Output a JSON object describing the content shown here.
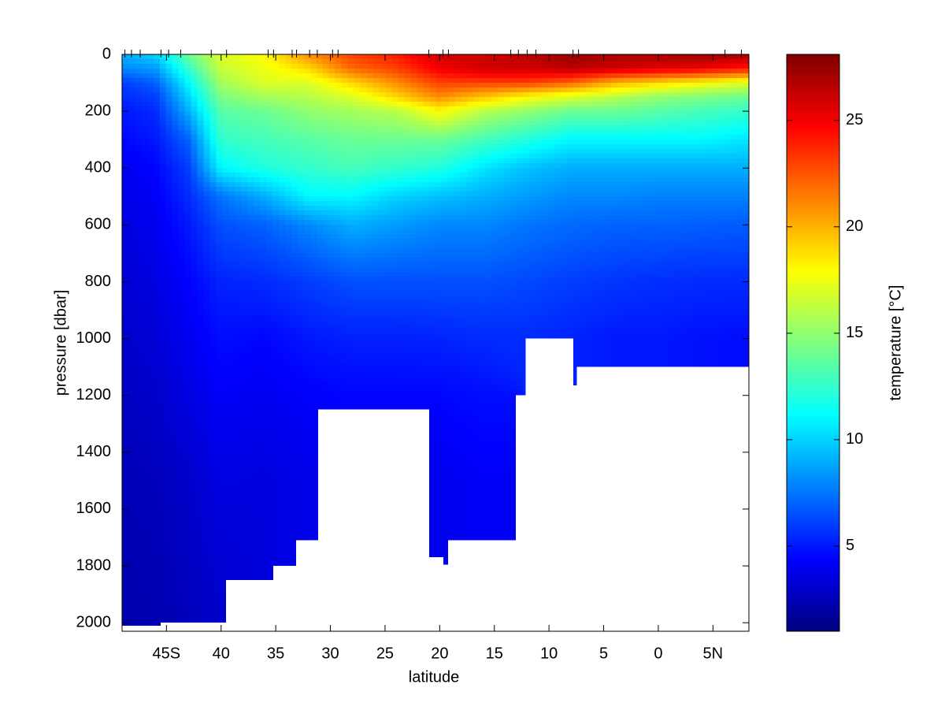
{
  "chart_data": {
    "type": "contour",
    "xlabel": "latitude",
    "ylabel": "pressure [dbar]",
    "colorbar_label": "temperature [°C]",
    "colormap": "jet",
    "clim": [
      1,
      28.1
    ],
    "colorbar_ticks": [
      5,
      10,
      15,
      20,
      25
    ],
    "xlim": [
      -49.06,
      8.29
    ],
    "ylim": [
      0,
      2030
    ],
    "y_reversed": true,
    "xticks": [
      {
        "value": -45,
        "label": "45S"
      },
      {
        "value": -40,
        "label": "40"
      },
      {
        "value": -35,
        "label": "35"
      },
      {
        "value": -30,
        "label": "30"
      },
      {
        "value": -25,
        "label": "25"
      },
      {
        "value": -20,
        "label": "20"
      },
      {
        "value": -15,
        "label": "15"
      },
      {
        "value": -10,
        "label": "10"
      },
      {
        "value": -5,
        "label": "5"
      },
      0,
      {
        "value": 5,
        "label": "5N"
      }
    ],
    "yticks": [
      0,
      200,
      400,
      600,
      800,
      1000,
      1200,
      1400,
      1600,
      1800,
      2000
    ],
    "stations": [
      -48.8,
      -48.2,
      -47.4,
      -45.5,
      -44.8,
      -43.7,
      -40.9,
      -39.5,
      -35.7,
      -35.2,
      -33.5,
      -33.1,
      -31.9,
      -31.2,
      -29.8,
      -29.3,
      -21.0,
      -19.7,
      -19.2,
      -13.5,
      -12.8,
      -12.0,
      -11.2,
      -7.8,
      -7.3,
      6.1,
      7.6
    ],
    "bottom_edges": [
      -49.06,
      -45.5,
      -39.5,
      -35.2,
      -33.1,
      -31.1,
      -21.0,
      -19.7,
      -19.2,
      -13.0,
      -12.1,
      -7.8,
      -7.4,
      8.29
    ],
    "bottom_pressure": [
      2010,
      2000,
      1850,
      1800,
      1710,
      1250,
      1770,
      1795,
      1710,
      1200,
      1000,
      1165,
      1100
    ],
    "field": {
      "x": [
        -49,
        -46,
        -43,
        -40,
        -36,
        -32,
        -28,
        -24,
        -20,
        -16,
        -12,
        -8,
        -4,
        0,
        4,
        8.3
      ],
      "y": [
        0,
        50,
        100,
        150,
        200,
        300,
        400,
        500,
        600,
        800,
        1000,
        1200,
        1500,
        2000
      ],
      "values": [
        [
          9,
          10,
          14,
          17,
          18,
          21,
          23,
          24,
          26,
          26,
          26.5,
          27.5,
          27,
          27,
          27.5,
          27
        ],
        [
          8,
          8.5,
          12.5,
          16.5,
          17.5,
          19,
          22,
          23,
          25,
          26,
          26,
          26.5,
          26,
          25.5,
          25,
          24
        ],
        [
          6,
          7,
          11,
          15.5,
          17,
          17,
          19,
          21,
          23,
          23,
          23,
          22,
          20,
          19,
          18,
          17
        ],
        [
          5.5,
          6,
          10,
          14.5,
          15.5,
          16,
          17,
          19,
          21,
          19.5,
          18,
          17,
          16,
          15,
          14.5,
          14
        ],
        [
          5,
          5.5,
          9,
          13.5,
          14,
          15,
          15.5,
          16,
          18,
          16,
          15,
          14,
          14,
          13.5,
          13,
          12.5
        ],
        [
          4.5,
          5,
          7,
          12.5,
          13,
          13.5,
          14,
          14,
          14,
          13,
          12,
          11,
          11,
          11,
          11,
          10.5
        ],
        [
          4,
          4.5,
          6,
          11,
          12,
          12.5,
          13,
          12.5,
          12,
          10.5,
          9.5,
          9,
          9,
          9,
          9,
          9
        ],
        [
          3.8,
          4.2,
          5.5,
          7.5,
          9,
          11,
          11,
          10,
          9.5,
          9,
          8.5,
          8,
          8,
          7.8,
          7.8,
          7.8
        ],
        [
          3.5,
          4,
          5,
          6.5,
          7,
          8,
          9,
          8.5,
          8,
          8,
          7.5,
          7.2,
          7,
          7,
          6.9,
          6.8
        ],
        [
          3.2,
          3.6,
          4.4,
          5.3,
          5.5,
          6,
          6.5,
          6.5,
          6.5,
          6.5,
          6.3,
          6,
          5.8,
          5.6,
          5.5,
          5.5
        ],
        [
          3,
          3.3,
          4,
          4.7,
          4.5,
          5,
          5.2,
          5.2,
          5.3,
          5.5,
          5.5,
          5.3,
          5,
          5,
          4.8,
          4.7
        ],
        [
          2.8,
          3,
          3.6,
          4.2,
          4,
          4.3,
          4.5,
          4.5,
          4.5,
          4.7,
          null,
          null,
          null,
          null,
          null,
          null
        ],
        [
          2.5,
          2.6,
          3,
          3.6,
          3.5,
          3.8,
          null,
          null,
          4,
          4.2,
          null,
          null,
          null,
          null,
          null,
          null
        ],
        [
          2.2,
          2.3,
          2.6,
          3,
          null,
          null,
          null,
          null,
          null,
          null,
          null,
          null,
          null,
          null,
          null,
          null
        ]
      ]
    }
  }
}
